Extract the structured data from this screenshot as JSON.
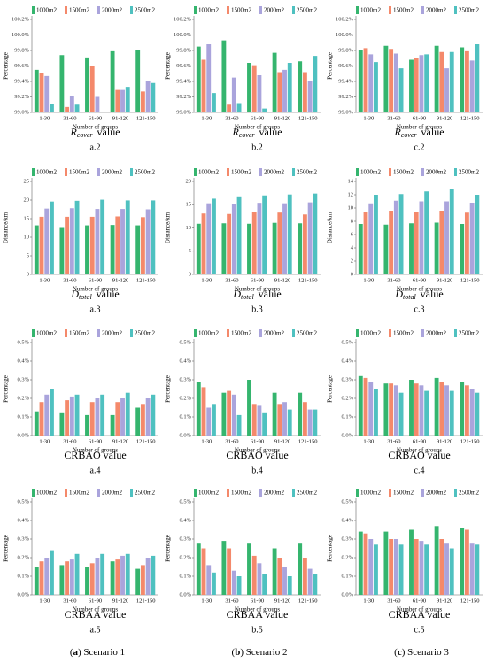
{
  "chart_data": [
    {
      "type": "bar",
      "legend": "top",
      "y_label": "Percentage",
      "x_label": "Number of groups",
      "caption": {
        "main": "R",
        "sub": "cover",
        "suffix": "value"
      },
      "sublabel": "a.2",
      "categories": [
        "1-30",
        "31-60",
        "61-90",
        "91-120",
        "121-150"
      ],
      "ylim": [
        99,
        100.2
      ],
      "yticks": [
        {
          "value": 99,
          "label": "99.0%"
        },
        {
          "value": 99.2,
          "label": "99.2%"
        },
        {
          "value": 99.4,
          "label": "99.4%"
        },
        {
          "value": 99.6,
          "label": "99.6%"
        },
        {
          "value": 99.8,
          "label": "99.8%"
        },
        {
          "value": 100,
          "label": "100.0%"
        },
        {
          "value": 100.2,
          "label": "100.2%"
        }
      ],
      "series": [
        {
          "name": "1000m2",
          "color": "#35b56e",
          "values": [
            99.55,
            99.74,
            99.71,
            99.79,
            99.81
          ]
        },
        {
          "name": "1500m2",
          "color": "#f4896b",
          "values": [
            99.51,
            99.07,
            99.6,
            99.29,
            99.27
          ]
        },
        {
          "name": "2000m2",
          "color": "#aaa4dc",
          "values": [
            99.47,
            99.21,
            99.2,
            99.29,
            99.4
          ]
        },
        {
          "name": "2500m2",
          "color": "#4fc1c0",
          "values": [
            99.11,
            99.1,
            99.01,
            99.33,
            99.38
          ]
        }
      ]
    },
    {
      "type": "bar",
      "legend": "top",
      "y_label": "Percentage",
      "x_label": "Number of groups",
      "caption": {
        "main": "R",
        "sub": "cover",
        "suffix": "value"
      },
      "sublabel": "b.2",
      "categories": [
        "1-30",
        "31-60",
        "61-90",
        "91-120",
        "121-150"
      ],
      "ylim": [
        99,
        100.2
      ],
      "yticks": [
        {
          "value": 99,
          "label": "99.0%"
        },
        {
          "value": 99.2,
          "label": "99.2%"
        },
        {
          "value": 99.4,
          "label": "99.4%"
        },
        {
          "value": 99.6,
          "label": "99.6%"
        },
        {
          "value": 99.8,
          "label": "99.8%"
        },
        {
          "value": 100,
          "label": "100.0%"
        },
        {
          "value": 100.2,
          "label": "100.2%"
        }
      ],
      "series": [
        {
          "name": "1000m2",
          "color": "#35b56e",
          "values": [
            99.85,
            99.93,
            99.64,
            99.77,
            99.66
          ]
        },
        {
          "name": "1500m2",
          "color": "#f4896b",
          "values": [
            99.68,
            99.1,
            99.61,
            99.52,
            99.52
          ]
        },
        {
          "name": "2000m2",
          "color": "#aaa4dc",
          "values": [
            99.88,
            99.45,
            99.48,
            99.55,
            99.4
          ]
        },
        {
          "name": "2500m2",
          "color": "#4fc1c0",
          "values": [
            99.25,
            99.12,
            99.05,
            99.64,
            99.73
          ]
        }
      ]
    },
    {
      "type": "bar",
      "legend": "top",
      "y_label": "Percentage",
      "x_label": "Number of groups",
      "caption": {
        "main": "R",
        "sub": "cover",
        "suffix": "value"
      },
      "sublabel": "c.2",
      "categories": [
        "1-30",
        "31-60",
        "61-90",
        "91-120",
        "121-150"
      ],
      "ylim": [
        99,
        100.2
      ],
      "yticks": [
        {
          "value": 99,
          "label": "99.0%"
        },
        {
          "value": 99.2,
          "label": "99.2%"
        },
        {
          "value": 99.4,
          "label": "99.4%"
        },
        {
          "value": 99.6,
          "label": "99.6%"
        },
        {
          "value": 99.8,
          "label": "99.8%"
        },
        {
          "value": 100,
          "label": "100.0%"
        },
        {
          "value": 100.2,
          "label": "100.2%"
        }
      ],
      "series": [
        {
          "name": "1000m2",
          "color": "#35b56e",
          "values": [
            99.8,
            99.86,
            99.68,
            99.86,
            99.84
          ]
        },
        {
          "name": "1500m2",
          "color": "#f4896b",
          "values": [
            99.83,
            99.82,
            99.7,
            99.78,
            99.79
          ]
        },
        {
          "name": "2000m2",
          "color": "#aaa4dc",
          "values": [
            99.75,
            99.76,
            99.74,
            99.57,
            99.67
          ]
        },
        {
          "name": "2500m2",
          "color": "#4fc1c0",
          "values": [
            99.65,
            99.57,
            99.75,
            99.78,
            99.88
          ]
        }
      ]
    },
    {
      "type": "bar",
      "legend": "top",
      "y_label": "Distance/km",
      "x_label": "Number of groups",
      "caption": {
        "main": "D",
        "sub": "total",
        "suffix": "value"
      },
      "sublabel": "a.3",
      "categories": [
        "1-30",
        "31-60",
        "61-90",
        "91-120",
        "121-150"
      ],
      "ylim": [
        0,
        25
      ],
      "yticks": [
        0,
        5,
        10,
        15,
        20,
        25
      ],
      "series": [
        {
          "name": "1000m2",
          "color": "#35b56e",
          "values": [
            13.2,
            12.5,
            13.2,
            13.3,
            13.2
          ]
        },
        {
          "name": "1500m2",
          "color": "#f4896b",
          "values": [
            15.5,
            15.5,
            15.5,
            15.6,
            15.4
          ]
        },
        {
          "name": "2000m2",
          "color": "#aaa4dc",
          "values": [
            17.7,
            17.8,
            17.6,
            17.6,
            17.5
          ]
        },
        {
          "name": "2500m2",
          "color": "#4fc1c0",
          "values": [
            19.6,
            19.8,
            20.1,
            19.9,
            19.9
          ]
        }
      ]
    },
    {
      "type": "bar",
      "legend": "top",
      "y_label": "Distance/km",
      "x_label": "Number of groups",
      "caption": {
        "main": "D",
        "sub": "total",
        "suffix": "value"
      },
      "sublabel": "b.3",
      "categories": [
        "1-30",
        "31-60",
        "61-90",
        "91-120",
        "121-150"
      ],
      "ylim": [
        0,
        20
      ],
      "yticks": [
        0,
        5,
        10,
        15,
        20
      ],
      "series": [
        {
          "name": "1000m2",
          "color": "#35b56e",
          "values": [
            10.9,
            11.0,
            10.9,
            11.1,
            11.0
          ]
        },
        {
          "name": "1500m2",
          "color": "#f4896b",
          "values": [
            13.1,
            13.0,
            13.4,
            13.3,
            12.9
          ]
        },
        {
          "name": "2000m2",
          "color": "#aaa4dc",
          "values": [
            15.3,
            15.2,
            15.4,
            15.3,
            15.5
          ]
        },
        {
          "name": "2500m2",
          "color": "#4fc1c0",
          "values": [
            16.3,
            16.8,
            17.0,
            17.2,
            17.4
          ]
        }
      ]
    },
    {
      "type": "bar",
      "legend": "top",
      "y_label": "Distance/km",
      "x_label": "Number of groups",
      "caption": {
        "main": "D",
        "sub": "total",
        "suffix": "value"
      },
      "sublabel": "c.3",
      "categories": [
        "1-30",
        "31-60",
        "61-90",
        "91-120",
        "121-150"
      ],
      "ylim": [
        0,
        14
      ],
      "yticks": [
        0,
        2,
        4,
        6,
        8,
        10,
        12,
        14
      ],
      "series": [
        {
          "name": "1000m2",
          "color": "#35b56e",
          "values": [
            7.6,
            7.5,
            7.7,
            7.8,
            7.6
          ]
        },
        {
          "name": "1500m2",
          "color": "#f4896b",
          "values": [
            9.4,
            9.6,
            9.4,
            9.6,
            9.3
          ]
        },
        {
          "name": "2000m2",
          "color": "#aaa4dc",
          "values": [
            10.7,
            11.1,
            11.0,
            11.0,
            10.8
          ]
        },
        {
          "name": "2500m2",
          "color": "#4fc1c0",
          "values": [
            12.0,
            12.1,
            12.5,
            12.8,
            12.0
          ]
        }
      ]
    },
    {
      "type": "bar",
      "legend": "top",
      "y_label": "Percentage",
      "x_label": "Number of groups",
      "caption": {
        "main": "CRBAO value"
      },
      "sublabel": "a.4",
      "categories": [
        "1-30",
        "31-60",
        "61-90",
        "91-120",
        "121-150"
      ],
      "ylim": [
        0,
        0.5
      ],
      "yticks": [
        {
          "value": 0,
          "label": "0.0%"
        },
        {
          "value": 0.1,
          "label": "0.1%"
        },
        {
          "value": 0.2,
          "label": "0.2%"
        },
        {
          "value": 0.3,
          "label": "0.3%"
        },
        {
          "value": 0.4,
          "label": "0.4%"
        },
        {
          "value": 0.5,
          "label": "0.5%"
        }
      ],
      "series": [
        {
          "name": "1000m2",
          "color": "#35b56e",
          "values": [
            0.13,
            0.12,
            0.11,
            0.11,
            0.15
          ]
        },
        {
          "name": "1500m2",
          "color": "#f4896b",
          "values": [
            0.18,
            0.19,
            0.18,
            0.18,
            0.17
          ]
        },
        {
          "name": "2000m2",
          "color": "#aaa4dc",
          "values": [
            0.22,
            0.21,
            0.2,
            0.2,
            0.2
          ]
        },
        {
          "name": "2500m2",
          "color": "#4fc1c0",
          "values": [
            0.25,
            0.22,
            0.22,
            0.23,
            0.22
          ]
        }
      ]
    },
    {
      "type": "bar",
      "legend": "top",
      "y_label": "Percentage",
      "x_label": "Number of groups",
      "caption": {
        "main": "CRBAO value"
      },
      "sublabel": "b.4",
      "categories": [
        "1-30",
        "31-60",
        "61-90",
        "91-120",
        "121-150"
      ],
      "ylim": [
        0,
        0.5
      ],
      "yticks": [
        {
          "value": 0,
          "label": "0.0%"
        },
        {
          "value": 0.1,
          "label": "0.1%"
        },
        {
          "value": 0.2,
          "label": "0.2%"
        },
        {
          "value": 0.3,
          "label": "0.3%"
        },
        {
          "value": 0.4,
          "label": "0.4%"
        },
        {
          "value": 0.5,
          "label": "0.5%"
        }
      ],
      "series": [
        {
          "name": "1000m2",
          "color": "#35b56e",
          "values": [
            0.29,
            0.23,
            0.3,
            0.23,
            0.23
          ]
        },
        {
          "name": "1500m2",
          "color": "#f4896b",
          "values": [
            0.26,
            0.24,
            0.17,
            0.17,
            0.18
          ]
        },
        {
          "name": "2000m2",
          "color": "#aaa4dc",
          "values": [
            0.15,
            0.22,
            0.16,
            0.18,
            0.14
          ]
        },
        {
          "name": "2500m2",
          "color": "#4fc1c0",
          "values": [
            0.17,
            0.11,
            0.12,
            0.14,
            0.14
          ]
        }
      ]
    },
    {
      "type": "bar",
      "legend": "top",
      "y_label": "Percentage",
      "x_label": "Number of groups",
      "caption": {
        "main": "CRBAO value"
      },
      "sublabel": "c.4",
      "categories": [
        "1-30",
        "31-60",
        "61-90",
        "91-120",
        "121-150"
      ],
      "ylim": [
        0,
        0.5
      ],
      "yticks": [
        {
          "value": 0,
          "label": "0.0%"
        },
        {
          "value": 0.1,
          "label": "0.1%"
        },
        {
          "value": 0.2,
          "label": "0.2%"
        },
        {
          "value": 0.3,
          "label": "0.3%"
        },
        {
          "value": 0.4,
          "label": "0.4%"
        },
        {
          "value": 0.5,
          "label": "0.5%"
        }
      ],
      "series": [
        {
          "name": "1000m2",
          "color": "#35b56e",
          "values": [
            0.32,
            0.28,
            0.3,
            0.31,
            0.29
          ]
        },
        {
          "name": "1500m2",
          "color": "#f4896b",
          "values": [
            0.31,
            0.28,
            0.28,
            0.29,
            0.27
          ]
        },
        {
          "name": "2000m2",
          "color": "#aaa4dc",
          "values": [
            0.29,
            0.27,
            0.27,
            0.27,
            0.25
          ]
        },
        {
          "name": "2500m2",
          "color": "#4fc1c0",
          "values": [
            0.25,
            0.23,
            0.24,
            0.24,
            0.23
          ]
        }
      ]
    },
    {
      "type": "bar",
      "legend": "top",
      "y_label": "Percentage",
      "x_label": "Number of groups",
      "caption": {
        "main": "CRBAA value"
      },
      "sublabel": "a.5",
      "categories": [
        "1-30",
        "31-60",
        "61-90",
        "91-120",
        "121-150"
      ],
      "ylim": [
        0,
        0.5
      ],
      "yticks": [
        {
          "value": 0,
          "label": "0.0%"
        },
        {
          "value": 0.1,
          "label": "0.1%"
        },
        {
          "value": 0.2,
          "label": "0.2%"
        },
        {
          "value": 0.3,
          "label": "0.3%"
        },
        {
          "value": 0.4,
          "label": "0.4%"
        },
        {
          "value": 0.5,
          "label": "0.5%"
        }
      ],
      "series": [
        {
          "name": "1000m2",
          "color": "#35b56e",
          "values": [
            0.15,
            0.16,
            0.15,
            0.18,
            0.14
          ]
        },
        {
          "name": "1500m2",
          "color": "#f4896b",
          "values": [
            0.18,
            0.18,
            0.17,
            0.19,
            0.16
          ]
        },
        {
          "name": "2000m2",
          "color": "#aaa4dc",
          "values": [
            0.2,
            0.19,
            0.2,
            0.21,
            0.2
          ]
        },
        {
          "name": "2500m2",
          "color": "#4fc1c0",
          "values": [
            0.24,
            0.22,
            0.22,
            0.22,
            0.21
          ]
        }
      ]
    },
    {
      "type": "bar",
      "legend": "top",
      "y_label": "Percentage",
      "x_label": "Number of groups",
      "caption": {
        "main": "CRBAA value"
      },
      "sublabel": "b.5",
      "categories": [
        "1-30",
        "31-60",
        "61-90",
        "91-120",
        "121-150"
      ],
      "ylim": [
        0,
        0.5
      ],
      "yticks": [
        {
          "value": 0,
          "label": "0.0%"
        },
        {
          "value": 0.1,
          "label": "0.1%"
        },
        {
          "value": 0.2,
          "label": "0.2%"
        },
        {
          "value": 0.3,
          "label": "0.3%"
        },
        {
          "value": 0.4,
          "label": "0.4%"
        },
        {
          "value": 0.5,
          "label": "0.5%"
        }
      ],
      "series": [
        {
          "name": "1000m2",
          "color": "#35b56e",
          "values": [
            0.28,
            0.29,
            0.28,
            0.25,
            0.28
          ]
        },
        {
          "name": "1500m2",
          "color": "#f4896b",
          "values": [
            0.25,
            0.25,
            0.21,
            0.2,
            0.2
          ]
        },
        {
          "name": "2000m2",
          "color": "#aaa4dc",
          "values": [
            0.16,
            0.13,
            0.17,
            0.15,
            0.14
          ]
        },
        {
          "name": "2500m2",
          "color": "#4fc1c0",
          "values": [
            0.12,
            0.1,
            0.11,
            0.1,
            0.11
          ]
        }
      ]
    },
    {
      "type": "bar",
      "legend": "top",
      "y_label": "Percentage",
      "x_label": "Number of groups",
      "caption": {
        "main": "CRBAA value"
      },
      "sublabel": "c.5",
      "categories": [
        "1-30",
        "31-60",
        "61-90",
        "91-120",
        "121-150"
      ],
      "ylim": [
        0,
        0.5
      ],
      "yticks": [
        {
          "value": 0,
          "label": "0.0%"
        },
        {
          "value": 0.1,
          "label": "0.1%"
        },
        {
          "value": 0.2,
          "label": "0.2%"
        },
        {
          "value": 0.3,
          "label": "0.3%"
        },
        {
          "value": 0.4,
          "label": "0.4%"
        },
        {
          "value": 0.5,
          "label": "0.5%"
        }
      ],
      "series": [
        {
          "name": "1000m2",
          "color": "#35b56e",
          "values": [
            0.34,
            0.34,
            0.35,
            0.37,
            0.36
          ]
        },
        {
          "name": "1500m2",
          "color": "#f4896b",
          "values": [
            0.33,
            0.3,
            0.3,
            0.3,
            0.35
          ]
        },
        {
          "name": "2000m2",
          "color": "#aaa4dc",
          "values": [
            0.3,
            0.3,
            0.29,
            0.28,
            0.28
          ]
        },
        {
          "name": "2500m2",
          "color": "#4fc1c0",
          "values": [
            0.27,
            0.27,
            0.27,
            0.25,
            0.27
          ]
        }
      ]
    }
  ],
  "footer": [
    {
      "open": "(",
      "letter": "a",
      "close": ") Scenario 1"
    },
    {
      "open": "(",
      "letter": "b",
      "close": ") Scenario 2"
    },
    {
      "open": "(",
      "letter": "c",
      "close": ") Scenario 3"
    }
  ]
}
